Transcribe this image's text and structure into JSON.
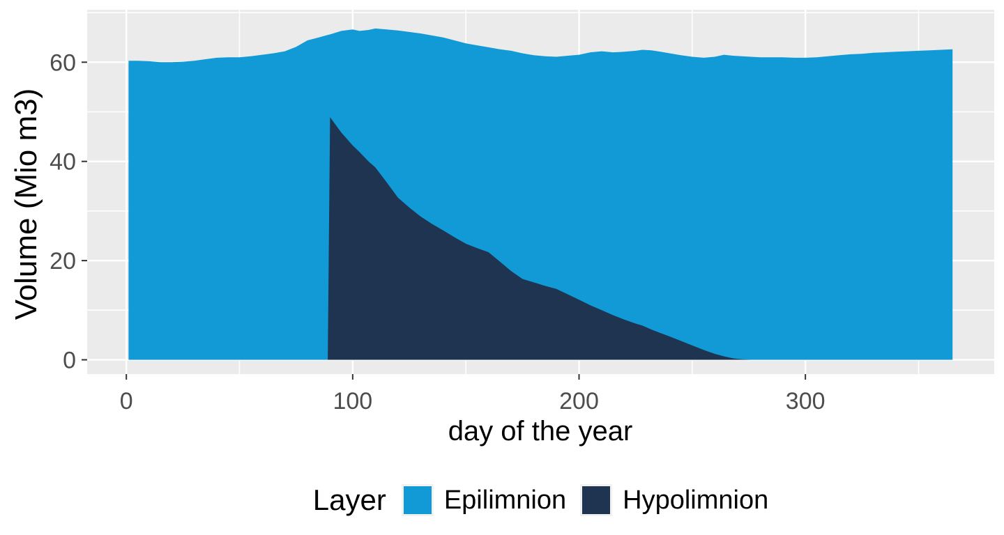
{
  "figure": {
    "background": "#FFFFFF"
  },
  "panel": {
    "background": "#EBEBEB",
    "grid_major_color": "#FFFFFF",
    "grid_minor_color": "#FFFFFF",
    "tick_mark_color": "#333333",
    "tick_label_color": "#4D4D4D"
  },
  "x_axis": {
    "title": "day of the year",
    "ticks": [
      0,
      100,
      200,
      300
    ],
    "minor_ticks": [
      50,
      150,
      250,
      350
    ]
  },
  "y_axis": {
    "title": "Volume (Mio m3)",
    "ticks": [
      0,
      20,
      40,
      60
    ],
    "minor_ticks": [
      10,
      30,
      50,
      70
    ]
  },
  "legend": {
    "title": "Layer",
    "items": [
      {
        "label": "Epilimnion",
        "color": "#119AD6"
      },
      {
        "label": "Hypolimnion",
        "color": "#1E3450"
      }
    ]
  },
  "chart_data": {
    "type": "area",
    "stacked": true,
    "title": "",
    "xlabel": "day of the year",
    "ylabel": "Volume (Mio m3)",
    "xlim": [
      -17,
      383
    ],
    "ylim": [
      -3,
      70.5
    ],
    "grid": true,
    "legend_position": "bottom",
    "x": [
      1,
      5,
      10,
      15,
      20,
      25,
      30,
      35,
      40,
      45,
      50,
      55,
      60,
      65,
      70,
      75,
      80,
      85,
      89,
      90,
      95,
      100,
      103,
      107,
      110,
      115,
      120,
      125,
      130,
      135,
      140,
      145,
      150,
      155,
      160,
      165,
      170,
      175,
      180,
      185,
      190,
      195,
      200,
      205,
      210,
      215,
      220,
      225,
      228,
      232,
      236,
      240,
      245,
      250,
      255,
      260,
      264,
      268,
      272,
      276,
      280,
      285,
      290,
      295,
      300,
      305,
      310,
      315,
      320,
      325,
      330,
      335,
      340,
      345,
      350,
      355,
      360,
      365
    ],
    "series": [
      {
        "name": "Hypolimnion",
        "color": "#1E3450",
        "stack_order": "bottom",
        "values": [
          0,
          0,
          0,
          0,
          0,
          0,
          0,
          0,
          0,
          0,
          0,
          0,
          0,
          0,
          0,
          0,
          0,
          0,
          0,
          48.9,
          45.8,
          43.2,
          41.9,
          40.0,
          38.8,
          35.8,
          32.7,
          30.7,
          28.9,
          27.4,
          26.1,
          24.7,
          23.4,
          22.5,
          21.7,
          19.8,
          17.9,
          16.3,
          15.6,
          14.9,
          14.3,
          13.2,
          12.1,
          11.0,
          10.0,
          9.0,
          8.1,
          7.3,
          6.9,
          6.1,
          5.4,
          4.7,
          3.8,
          2.9,
          2.0,
          1.2,
          0.7,
          0.3,
          0.1,
          0,
          0,
          0,
          0,
          0,
          0,
          0,
          0,
          0,
          0,
          0,
          0,
          0,
          0,
          0,
          0,
          0,
          0,
          0
        ]
      },
      {
        "name": "Epilimnion",
        "color": "#119AD6",
        "stack_order": "top",
        "values": [
          60.3,
          60.3,
          60.2,
          60.0,
          60.0,
          60.1,
          60.3,
          60.6,
          60.9,
          61.0,
          61.0,
          61.2,
          61.5,
          61.8,
          62.2,
          63.1,
          64.4,
          65.0,
          65.5,
          16.7,
          20.5,
          23.4,
          24.4,
          26.5,
          28.0,
          30.8,
          33.7,
          35.4,
          36.9,
          38.0,
          38.9,
          39.7,
          40.4,
          40.9,
          41.3,
          42.8,
          44.4,
          45.5,
          45.8,
          46.3,
          46.8,
          48.1,
          49.4,
          51.0,
          52.2,
          53.0,
          54.0,
          55.0,
          55.6,
          56.3,
          56.7,
          57.1,
          57.6,
          58.2,
          58.9,
          59.9,
          60.8,
          61.0,
          61.1,
          61.1,
          61.0,
          61.0,
          61.0,
          60.9,
          60.9,
          61.0,
          61.2,
          61.4,
          61.6,
          61.7,
          61.9,
          62.0,
          62.1,
          62.2,
          62.3,
          62.4,
          62.5,
          62.6
        ]
      }
    ]
  }
}
